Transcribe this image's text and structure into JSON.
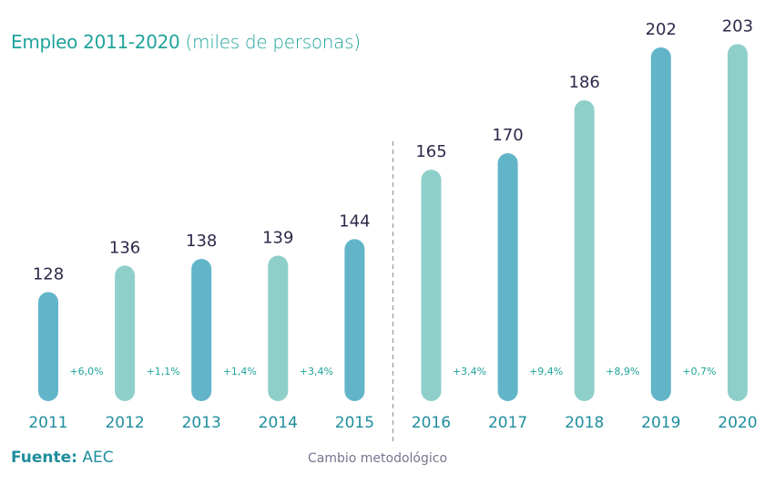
{
  "title": "Empleo 2011-2020",
  "subtitle": "(miles de personas)",
  "source_label": "Fuente:",
  "source_value": "AEC",
  "methodology_note": "Cambio metodológico",
  "colors": {
    "dark": "#62b5c9",
    "light": "#8fcfca",
    "value_text": "#2d2a4a",
    "year_text": "#1f8e9e",
    "change_text": "#1fa39a"
  },
  "chart_data": {
    "type": "bar",
    "categories": [
      "2011",
      "2012",
      "2013",
      "2014",
      "2015",
      "2016",
      "2017",
      "2018",
      "2019",
      "2020"
    ],
    "values": [
      128,
      136,
      138,
      139,
      144,
      165,
      170,
      186,
      202,
      203
    ],
    "value_labels": [
      "128",
      "136",
      "138",
      "139",
      "144",
      "165",
      "170",
      "186",
      "202",
      "203"
    ],
    "changes": [
      "+6,0%",
      "+1,1%",
      "+1,4%",
      "+3,4%",
      "",
      "+3,4%",
      "+9,4%",
      "+8,9%",
      "+0,7%"
    ],
    "methodology_break_after": "2015",
    "ylim": [
      95,
      203
    ],
    "grid": false
  }
}
